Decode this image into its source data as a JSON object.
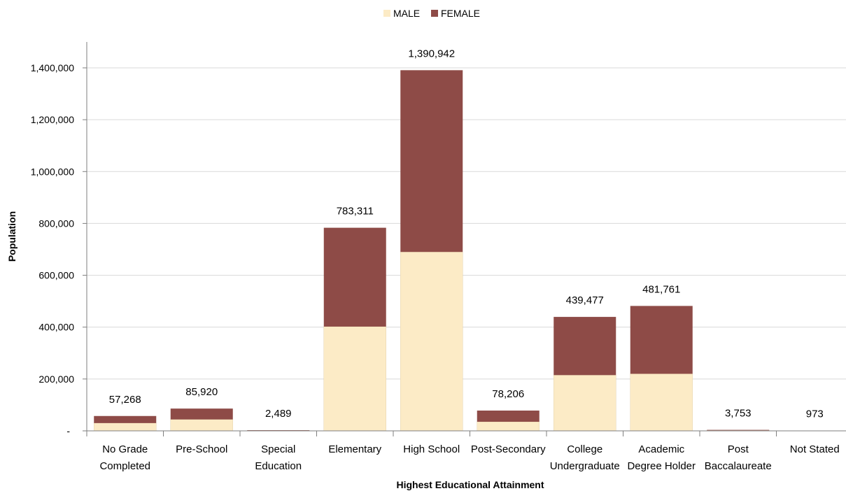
{
  "chart_data": {
    "type": "bar",
    "stacked": true,
    "xlabel": "Highest Educational Attainment",
    "ylabel": "Population",
    "ylim": [
      0,
      1500000
    ],
    "yticks": [
      0,
      200000,
      400000,
      600000,
      800000,
      1000000,
      1200000,
      1400000
    ],
    "ytick_labels": [
      "-",
      "200,000",
      "400,000",
      "600,000",
      "800,000",
      "1,000,000",
      "1,200,000",
      "1,400,000"
    ],
    "grid": "horizontal",
    "legend_position": "top-center",
    "categories": [
      [
        "No Grade",
        "Completed"
      ],
      [
        "Pre-School"
      ],
      [
        "Special",
        "Education"
      ],
      [
        "Elementary"
      ],
      [
        "High School"
      ],
      [
        "Post-Secondary"
      ],
      [
        "College",
        "Undergraduate"
      ],
      [
        "Academic",
        "Degree Holder"
      ],
      [
        "Post",
        "Baccalaureate"
      ],
      [
        "Not Stated"
      ]
    ],
    "series": [
      {
        "name": "MALE",
        "color": "#FCEBC6",
        "values": [
          30000,
          44000,
          1200,
          402000,
          690000,
          35000,
          215000,
          220000,
          1800,
          480
        ]
      },
      {
        "name": "FEMALE",
        "color": "#8E4B47",
        "values": [
          27268,
          41920,
          1289,
          381311,
          700942,
          43206,
          224477,
          261761,
          1953,
          493
        ]
      }
    ],
    "totals": [
      57268,
      85920,
      2489,
      783311,
      1390942,
      78206,
      439477,
      481761,
      3753,
      973
    ],
    "total_labels": [
      "57,268",
      "85,920",
      "2,489",
      "783,311",
      "1,390,942",
      "78,206",
      "439,477",
      "481,761",
      "3,753",
      "973"
    ]
  }
}
